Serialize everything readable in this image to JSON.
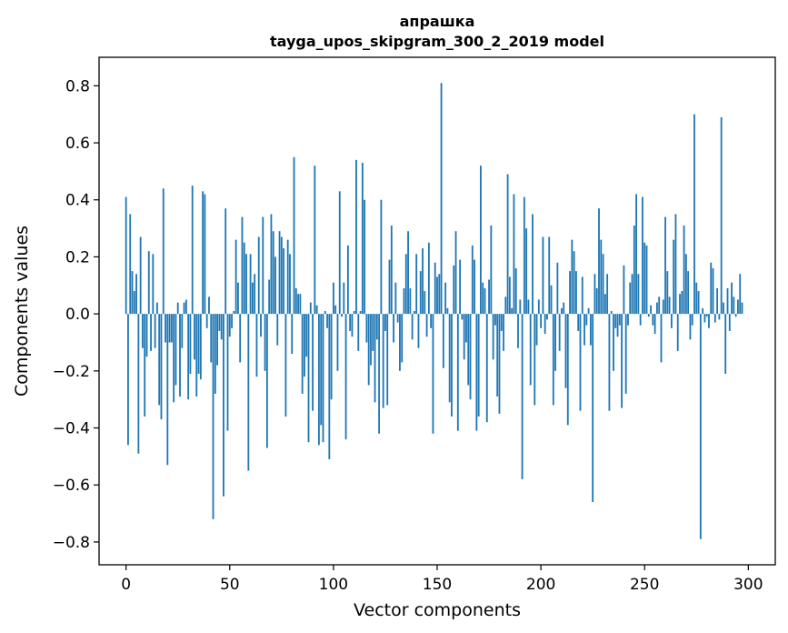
{
  "chart_data": {
    "type": "bar",
    "title": [
      "апрашка",
      "tayga_upos_skipgram_300_2_2019 model"
    ],
    "xlabel": "Vector components",
    "ylabel": "Components values",
    "xlim": [
      -13,
      313
    ],
    "ylim": [
      -0.88,
      0.9
    ],
    "xticks": [
      0,
      50,
      100,
      150,
      200,
      250,
      300
    ],
    "xtick_labels": [
      "0",
      "50",
      "100",
      "150",
      "200",
      "250",
      "300"
    ],
    "yticks": [
      -0.8,
      -0.6,
      -0.4,
      -0.2,
      0.0,
      0.2,
      0.4,
      0.6,
      0.8
    ],
    "ytick_labels": [
      "−0.8",
      "−0.6",
      "−0.4",
      "−0.2",
      "0.0",
      "0.2",
      "0.4",
      "0.6",
      "0.8"
    ],
    "bar_color": "#1f77b4",
    "x": "0..299",
    "values": [
      0.41,
      -0.46,
      0.35,
      0.15,
      0.08,
      0.14,
      -0.49,
      0.27,
      -0.12,
      -0.36,
      -0.15,
      0.22,
      -0.13,
      0.21,
      -0.12,
      0.04,
      -0.32,
      -0.37,
      0.44,
      -0.1,
      -0.53,
      -0.1,
      -0.1,
      -0.31,
      -0.25,
      0.04,
      -0.29,
      -0.12,
      0.04,
      0.05,
      -0.3,
      -0.21,
      0.45,
      -0.16,
      -0.29,
      -0.21,
      -0.23,
      0.43,
      0.42,
      -0.05,
      0.06,
      -0.17,
      -0.72,
      -0.28,
      -0.18,
      -0.06,
      -0.09,
      -0.64,
      0.37,
      -0.41,
      -0.08,
      -0.05,
      0.01,
      0.26,
      0.11,
      -0.17,
      0.34,
      0.25,
      0.21,
      -0.55,
      0.21,
      0.11,
      0.14,
      -0.22,
      0.27,
      -0.08,
      0.34,
      -0.2,
      -0.47,
      0.12,
      0.35,
      0.29,
      0.2,
      -0.11,
      0.29,
      0.27,
      0.23,
      -0.36,
      0.26,
      0.21,
      -0.14,
      0.55,
      0.09,
      0.07,
      0.07,
      -0.28,
      -0.22,
      -0.15,
      -0.45,
      0.04,
      -0.34,
      0.52,
      0.03,
      -0.46,
      -0.39,
      -0.45,
      0.01,
      -0.05,
      -0.51,
      -0.3,
      0.11,
      0.03,
      -0.2,
      0.43,
      -0.01,
      0.11,
      -0.44,
      0.24,
      -0.06,
      -0.08,
      0.01,
      0.54,
      -0.13,
      0.01,
      0.53,
      0.4,
      -0.1,
      -0.25,
      -0.18,
      -0.13,
      -0.31,
      -0.09,
      -0.42,
      0.4,
      -0.33,
      -0.06,
      -0.32,
      0.19,
      0.31,
      -0.1,
      0.11,
      -0.03,
      -0.2,
      -0.17,
      0.09,
      0.21,
      0.29,
      0.09,
      -0.09,
      0.01,
      0.21,
      -0.12,
      0.15,
      0.23,
      0.08,
      -0.08,
      0.25,
      -0.05,
      -0.42,
      0.18,
      0.13,
      0.14,
      0.81,
      -0.19,
      0.11,
      0.02,
      -0.31,
      -0.36,
      0.17,
      0.29,
      -0.41,
      0.19,
      -0.02,
      -0.16,
      -0.1,
      -0.25,
      -0.3,
      0.24,
      0.19,
      -0.41,
      -0.36,
      0.52,
      0.11,
      0.09,
      -0.38,
      0.12,
      0.31,
      -0.16,
      -0.04,
      -0.29,
      -0.35,
      -0.06,
      -0.13,
      0.06,
      0.49,
      0.13,
      0.02,
      0.42,
      0.16,
      -0.12,
      0.05,
      -0.58,
      0.41,
      0.3,
      0.05,
      -0.25,
      0.35,
      -0.32,
      -0.11,
      0.05,
      -0.05,
      0.27,
      -0.07,
      -0.02,
      0.27,
      0.1,
      -0.32,
      -0.2,
      0.18,
      -0.13,
      0.02,
      0.04,
      -0.26,
      -0.39,
      0.15,
      0.26,
      0.22,
      0.15,
      -0.06,
      -0.34,
      0.13,
      -0.11,
      -0.04,
      0.02,
      -0.11,
      -0.66,
      0.14,
      0.09,
      0.37,
      0.26,
      0.21,
      0.07,
      0.14,
      -0.34,
      0.01,
      -0.2,
      -0.05,
      -0.08,
      -0.04,
      -0.33,
      0.17,
      -0.28,
      -0.04,
      0.11,
      0.14,
      0.31,
      0.42,
      0.14,
      -0.04,
      0.41,
      0.25,
      0.24,
      -0.01,
      0.03,
      -0.04,
      -0.07,
      0.04,
      0.06,
      -0.17,
      0.05,
      0.34,
      0.15,
      0.06,
      -0.05,
      0.26,
      0.35,
      -0.13,
      0.07,
      0.08,
      0.31,
      0.21,
      0.15,
      -0.09,
      -0.04,
      0.7,
      0.11,
      0.08,
      -0.79,
      0.02,
      -0.03,
      -0.01,
      -0.05,
      0.18,
      0.16,
      -0.03,
      0.09,
      -0.02,
      0.69,
      0.04,
      -0.21,
      0.09,
      -0.06,
      0.11,
      0.06,
      -0.01,
      0.05,
      0.14,
      0.04
    ]
  }
}
